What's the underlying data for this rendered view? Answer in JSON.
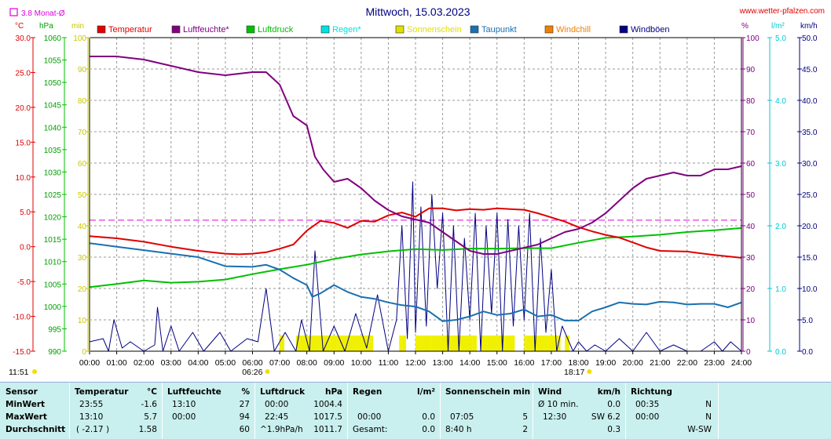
{
  "header": {
    "title": "Mittwoch, 15.03.2023",
    "site": "www.wetter-pfalzen.com",
    "monthly_avg_label": "3.8 Monat-Ø"
  },
  "axis_headers": {
    "left": [
      "°C",
      "hPa",
      "min"
    ],
    "right": [
      "%",
      "l/m²",
      "km/h"
    ]
  },
  "legend": [
    {
      "label": "Temperatur",
      "color": "#e00000"
    },
    {
      "label": "Luftfeuchte*",
      "color": "#800080"
    },
    {
      "label": "Luftdruck",
      "color": "#00c000"
    },
    {
      "label": "Regen*",
      "color": "#00e0e0"
    },
    {
      "label": "Sonnenschein",
      "color": "#e0e000"
    },
    {
      "label": "Taupunkt",
      "color": "#1a70b0"
    },
    {
      "label": "Windchill",
      "color": "#f08000"
    },
    {
      "label": "Windböen",
      "color": "#000080"
    }
  ],
  "sun_times": {
    "sunrise": "06:26",
    "sunset": "18:17"
  },
  "clock": "11:51",
  "chart_data": {
    "type": "line",
    "x_ticks": [
      "00:00",
      "01:00",
      "02:00",
      "03:00",
      "04:00",
      "05:00",
      "06:00",
      "07:00",
      "08:00",
      "09:00",
      "10:00",
      "11:00",
      "12:00",
      "13:00",
      "14:00",
      "15:00",
      "16:00",
      "17:00",
      "18:00",
      "19:00",
      "20:00",
      "21:00",
      "22:00",
      "23:00",
      "24:00"
    ],
    "xlim": [
      0,
      24
    ],
    "axes": {
      "temperature_c": {
        "range": [
          -15,
          30
        ],
        "ticks": [
          "30.0",
          "25.0",
          "20.0",
          "15.0",
          "10.0",
          "5.0",
          "0.0",
          "-5.0",
          "-10.0",
          "-15.0"
        ]
      },
      "pressure_hpa": {
        "range": [
          990,
          1060
        ],
        "ticks": [
          "1060",
          "1055",
          "1050",
          "1045",
          "1040",
          "1035",
          "1030",
          "1025",
          "1020",
          "1015",
          "1010",
          "1005",
          "1000",
          "995",
          "990"
        ]
      },
      "sunshine_min": {
        "range": [
          0,
          100
        ],
        "ticks": [
          "100",
          "90",
          "80",
          "70",
          "60",
          "50",
          "40",
          "30",
          "20",
          "10",
          "0"
        ]
      },
      "humidity_pct": {
        "range": [
          0,
          100
        ],
        "ticks": [
          "100",
          "90",
          "80",
          "70",
          "60",
          "50",
          "40",
          "30",
          "20",
          "10",
          "0"
        ]
      },
      "rain_lm2": {
        "range": [
          0,
          5
        ],
        "ticks": [
          "5.0",
          "4.0",
          "3.0",
          "2.0",
          "1.0",
          "0.0"
        ]
      },
      "wind_kmh": {
        "range": [
          0,
          50
        ],
        "ticks": [
          "50.0",
          "45.0",
          "40.0",
          "35.0",
          "30.0",
          "25.0",
          "20.0",
          "15.0",
          "10.0",
          "5.0",
          "0.0"
        ]
      }
    },
    "monthly_avg_temp": 3.8,
    "series": [
      {
        "name": "Temperatur",
        "axis": "temperature_c",
        "color": "#e00000",
        "x": [
          0,
          1,
          2,
          3,
          4,
          5,
          5.5,
          6,
          6.5,
          7,
          7.5,
          8,
          8.5,
          9,
          9.5,
          10,
          10.5,
          11,
          11.5,
          12,
          12.5,
          13,
          13.5,
          14,
          14.5,
          15,
          15.5,
          16,
          16.5,
          17,
          17.5,
          18,
          18.5,
          19,
          19.5,
          20,
          20.5,
          21,
          22,
          23,
          24
        ],
        "y": [
          1.5,
          1.2,
          0.7,
          0.0,
          -0.6,
          -1.0,
          -1.1,
          -1.0,
          -0.8,
          -0.3,
          0.3,
          2.3,
          3.7,
          3.4,
          2.7,
          3.7,
          3.6,
          4.5,
          4.9,
          4.3,
          5.5,
          5.5,
          5.2,
          5.4,
          5.3,
          5.5,
          5.4,
          5.3,
          4.8,
          4.2,
          3.6,
          2.8,
          2.2,
          1.7,
          1.3,
          0.6,
          -0.1,
          -0.6,
          -0.7,
          -1.2,
          -1.6
        ]
      },
      {
        "name": "Luftfeuchte*",
        "axis": "humidity_pct",
        "color": "#800080",
        "x": [
          0,
          1,
          2,
          3,
          4,
          5,
          6,
          6.5,
          7,
          7.5,
          8,
          8.3,
          8.6,
          9,
          9.5,
          10,
          10.5,
          11,
          11.5,
          12,
          12.5,
          13,
          13.5,
          14,
          14.5,
          15,
          15.5,
          16,
          16.5,
          17,
          17.5,
          18,
          18.5,
          19,
          19.5,
          20,
          20.5,
          21,
          21.5,
          22,
          22.5,
          23,
          23.5,
          24
        ],
        "y": [
          94,
          94,
          93,
          91,
          89,
          88,
          89,
          89,
          85,
          75,
          72,
          62,
          58,
          54,
          55,
          52,
          48,
          45,
          43,
          42,
          41,
          38,
          35,
          32,
          31,
          31,
          32,
          33,
          34,
          36,
          38,
          39,
          41,
          44,
          48,
          52,
          55,
          56,
          57,
          56,
          56,
          58,
          58,
          59
        ]
      },
      {
        "name": "Luftdruck",
        "axis": "pressure_hpa",
        "color": "#00c000",
        "x": [
          0,
          1,
          2,
          3,
          4,
          5,
          6,
          7,
          8,
          9,
          10,
          11,
          12,
          13,
          14,
          15,
          16,
          17,
          18,
          19,
          20,
          21,
          22,
          23,
          24
        ],
        "y": [
          1004.3,
          1005.0,
          1005.8,
          1005.3,
          1005.5,
          1006.0,
          1007.2,
          1008.3,
          1009.3,
          1010.6,
          1011.6,
          1012.3,
          1012.8,
          1012.6,
          1012.9,
          1012.9,
          1013.0,
          1013.0,
          1014.2,
          1015.3,
          1015.6,
          1016.0,
          1016.6,
          1017.0,
          1017.5
        ]
      },
      {
        "name": "Taupunkt",
        "axis": "temperature_c",
        "color": "#1a70b0",
        "x": [
          0,
          1,
          2,
          3,
          4,
          5,
          6,
          6.5,
          7,
          7.5,
          8,
          8.2,
          8.5,
          9,
          9.5,
          10,
          10.5,
          11,
          11.5,
          12,
          12.5,
          13,
          13.5,
          14,
          14.5,
          15,
          15.5,
          16,
          16.5,
          17,
          17.5,
          18,
          18.5,
          19,
          19.5,
          20,
          20.5,
          21,
          21.5,
          22,
          22.5,
          23,
          23.5,
          24
        ],
        "y": [
          0.5,
          0.0,
          -0.5,
          -1.0,
          -1.5,
          -2.8,
          -2.9,
          -2.6,
          -3.3,
          -4.5,
          -5.5,
          -7.2,
          -6.7,
          -5.5,
          -6.5,
          -7.2,
          -7.5,
          -8.0,
          -8.4,
          -8.6,
          -9.3,
          -10.7,
          -10.5,
          -10.0,
          -9.3,
          -9.8,
          -9.6,
          -9.0,
          -10.0,
          -9.8,
          -10.6,
          -10.6,
          -9.3,
          -8.7,
          -8.0,
          -8.2,
          -8.3,
          -7.9,
          -8.0,
          -8.3,
          -8.2,
          -8.2,
          -8.7,
          -8.0
        ]
      },
      {
        "name": "Windböen",
        "axis": "wind_kmh",
        "color": "#000080",
        "x": [
          0,
          0.5,
          0.7,
          0.9,
          1.2,
          1.5,
          2.0,
          2.4,
          2.5,
          2.7,
          3.0,
          3.3,
          3.8,
          4.2,
          4.8,
          5.2,
          5.8,
          6.2,
          6.5,
          6.8,
          7.2,
          7.6,
          7.8,
          8.1,
          8.3,
          8.6,
          9.0,
          9.4,
          9.8,
          10.2,
          10.6,
          11.0,
          11.3,
          11.5,
          11.7,
          11.9,
          12.0,
          12.2,
          12.4,
          12.6,
          12.8,
          13.0,
          13.2,
          13.4,
          13.6,
          13.8,
          14.0,
          14.2,
          14.4,
          14.6,
          14.8,
          15.0,
          15.2,
          15.4,
          15.6,
          15.8,
          16.0,
          16.2,
          16.4,
          16.6,
          16.8,
          17.0,
          17.2,
          17.4,
          17.6,
          17.8,
          18.0,
          18.3,
          18.6,
          19.0,
          19.5,
          20.0,
          20.5,
          21.0,
          21.5,
          22.0,
          22.5,
          23.0,
          23.3,
          23.6,
          24.0
        ],
        "y": [
          1.5,
          2.0,
          0.0,
          5.0,
          0.5,
          1.5,
          0.0,
          1.0,
          7.0,
          0.0,
          4.0,
          0.0,
          3.0,
          0.0,
          3.0,
          0.0,
          2.0,
          1.5,
          10.0,
          0.0,
          3.0,
          0.0,
          5.0,
          0.0,
          16.0,
          0.0,
          4.0,
          0.0,
          6.0,
          0.5,
          9.0,
          0.0,
          5.0,
          20.0,
          2.0,
          27.0,
          3.0,
          23.0,
          4.0,
          25.0,
          10.0,
          22.0,
          0.0,
          20.0,
          0.0,
          18.0,
          5.0,
          22.0,
          0.0,
          20.0,
          6.0,
          22.0,
          0.0,
          21.0,
          4.0,
          20.0,
          5.0,
          22.0,
          0.0,
          18.0,
          3.0,
          13.0,
          0.0,
          4.0,
          2.0,
          0.0,
          1.5,
          0.0,
          1.0,
          0.0,
          2.0,
          0.0,
          3.0,
          0.0,
          1.0,
          0.0,
          0.0,
          1.5,
          0.0,
          1.5,
          0.0
        ]
      }
    ],
    "sunshine_bars": {
      "axis": "sunshine_min",
      "color": "#f0f000",
      "intervals": [
        [
          7.0,
          7.1
        ],
        [
          7.6,
          10.4
        ],
        [
          11.4,
          11.6
        ],
        [
          12.0,
          14.2
        ],
        [
          14.4,
          15.6
        ],
        [
          16.0,
          17.3
        ],
        [
          17.5,
          17.6
        ]
      ],
      "value": 5
    }
  },
  "stats_table": {
    "headers": {
      "sensor": "Sensor",
      "temperature": "Temperatur",
      "temperature_unit": "°C",
      "humidity": "Luftfeuchte",
      "humidity_unit": "%",
      "pressure": "Luftdruck",
      "pressure_unit": "hPa",
      "rain": "Regen",
      "rain_unit": "l/m²",
      "sunshine": "Sonnenschein min",
      "wind": "Wind",
      "wind_unit": "km/h",
      "direction": "Richtung"
    },
    "rows": [
      {
        "label": "MinWert",
        "temp_time": "23:55",
        "temp_val": "-1.6",
        "hum_time": "13:10",
        "hum_val": "27",
        "pres_time": "00:00",
        "pres_val": "1004.4",
        "rain_time": "",
        "rain_val": "",
        "sun_time": "",
        "sun_val": "",
        "wind_time": "Ø 10 min.",
        "wind_val": "0.0",
        "dir_time": "00:35",
        "dir_val": "N"
      },
      {
        "label": "MaxWert",
        "temp_time": "13:10",
        "temp_val": "5.7",
        "hum_time": "00:00",
        "hum_val": "94",
        "pres_time": "22:45",
        "pres_val": "1017.5",
        "rain_time": "00:00",
        "rain_val": "0.0",
        "sun_time": "07:05",
        "sun_val": "5",
        "wind_time": "12:30",
        "wind_val": "SW 6.2",
        "dir_time": "00:00",
        "dir_val": "N"
      },
      {
        "label": "Durchschnitt",
        "temp_time": "( -2.17 )",
        "temp_val": "1.58",
        "hum_time": "",
        "hum_val": "60",
        "pres_time": "^1.9hPa/h",
        "pres_val": "1011.7",
        "rain_time": "Gesamt:",
        "rain_val": "0.0",
        "sun_time": "8:40 h",
        "sun_val": "2",
        "wind_time": "",
        "wind_val": "0.3",
        "dir_time": "",
        "dir_val": "W-SW"
      }
    ]
  }
}
